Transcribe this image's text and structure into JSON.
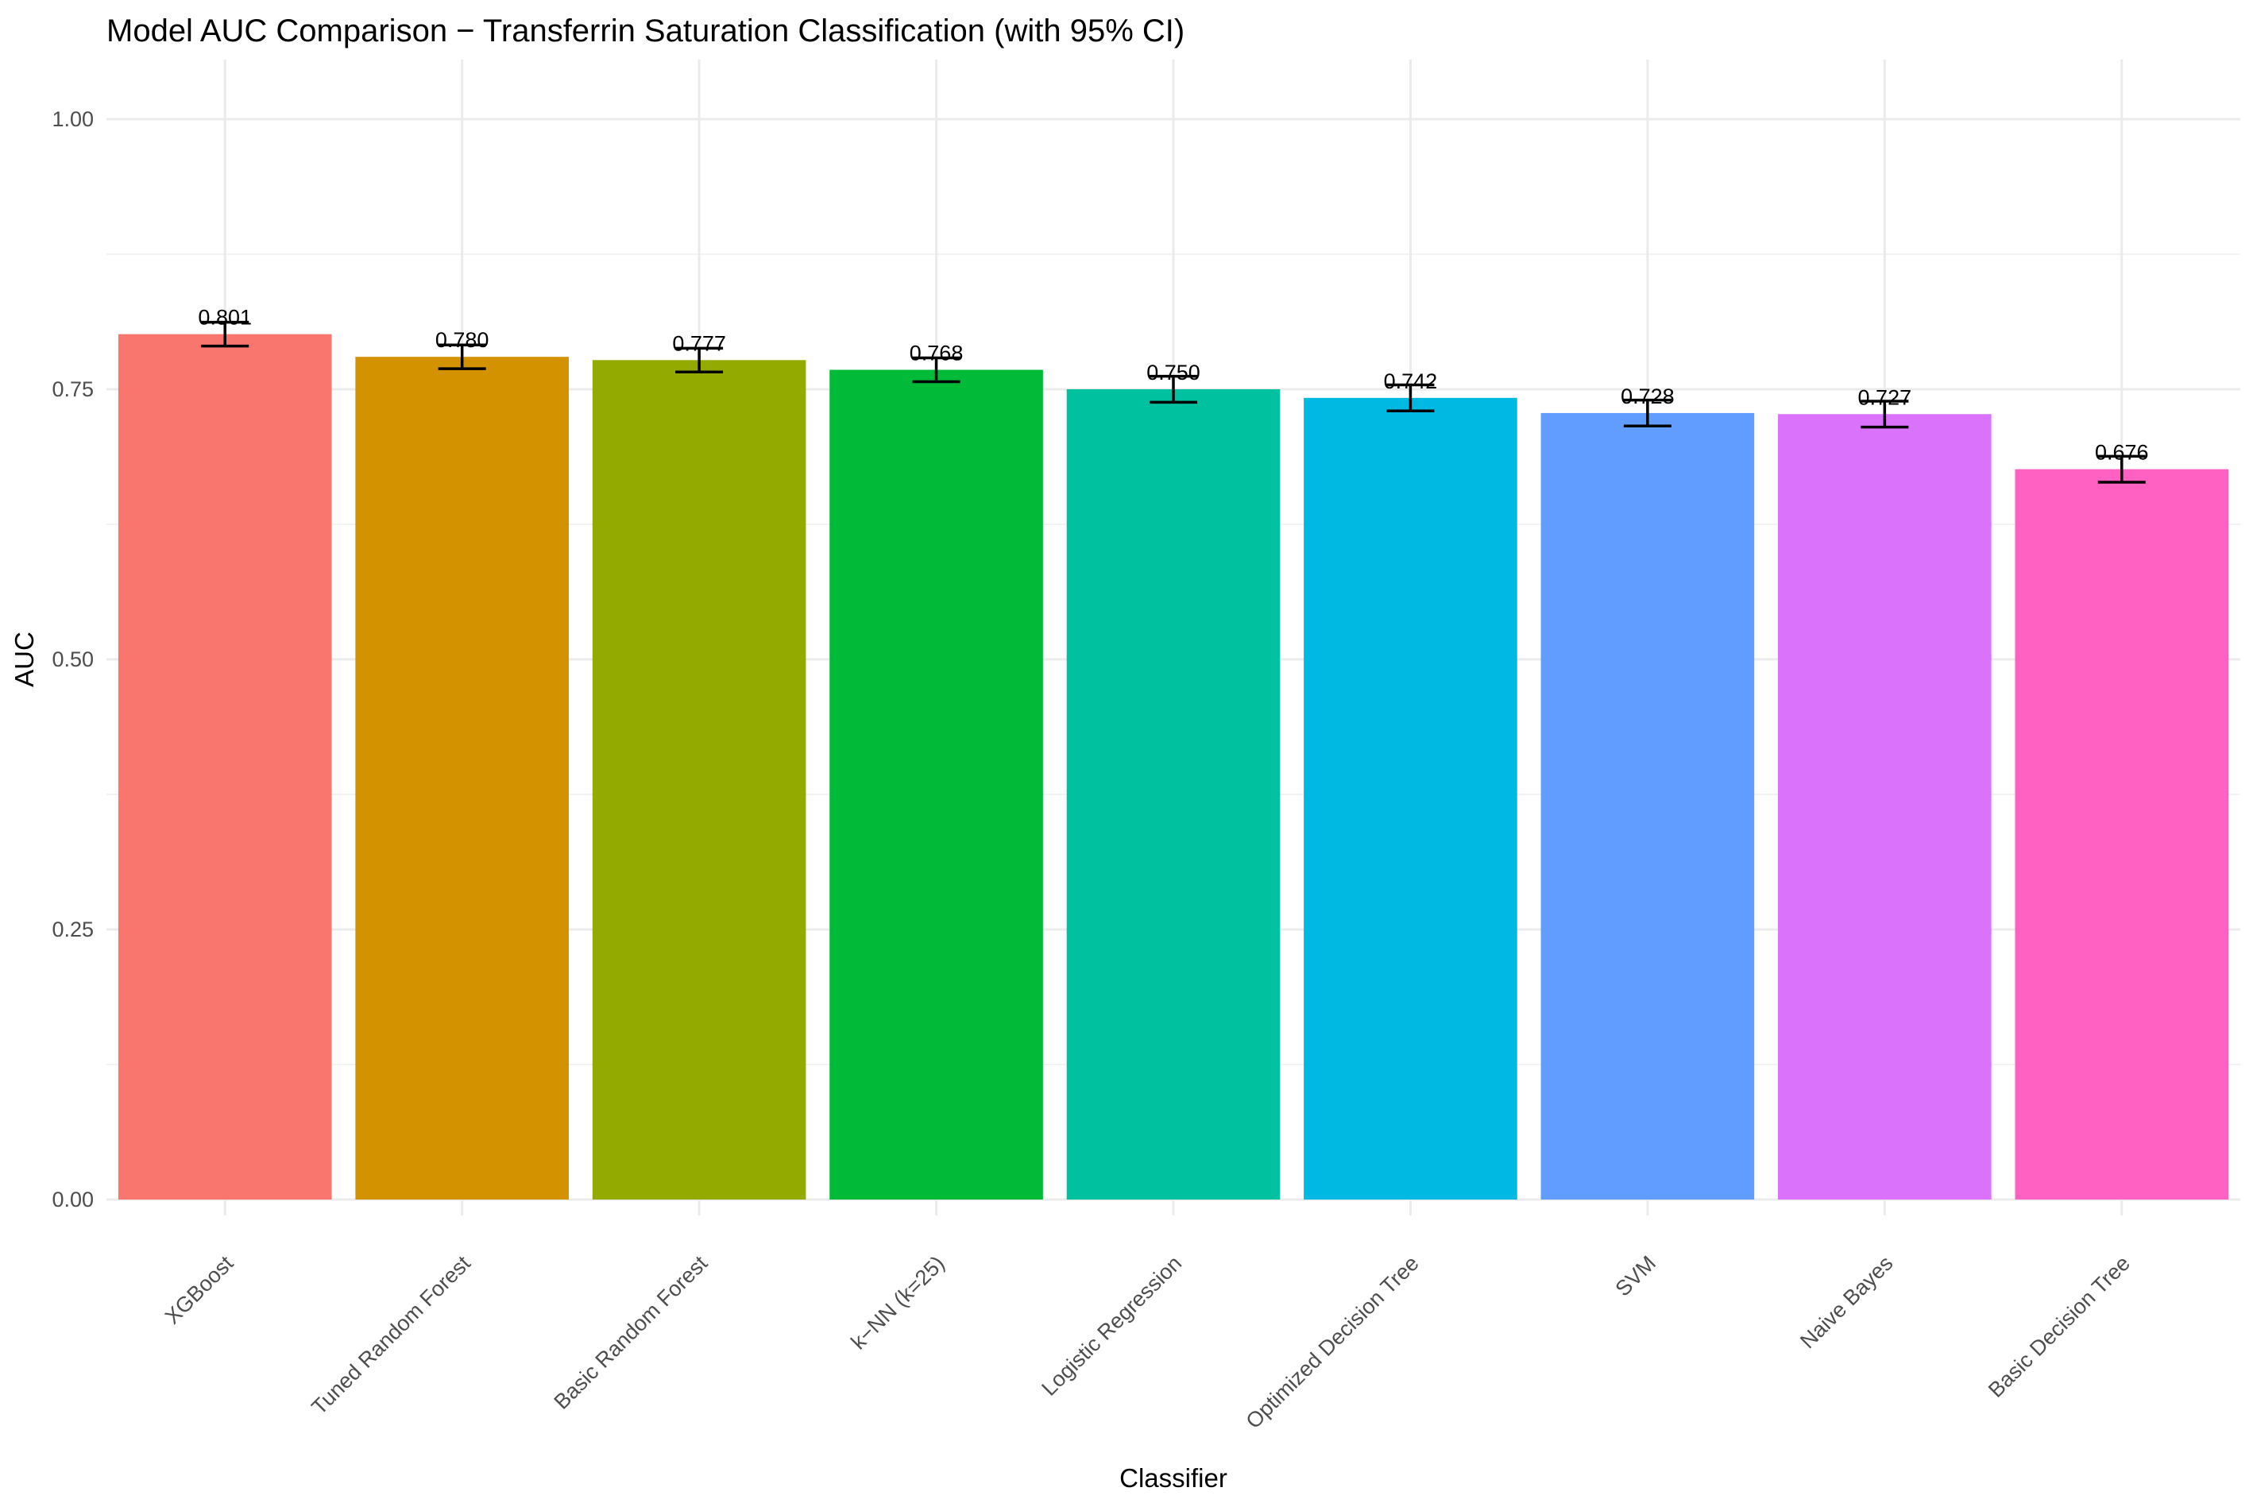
{
  "chart_data": {
    "type": "bar",
    "title": "Model AUC Comparison − Transferrin Saturation Classification (with 95% CI)",
    "xlabel": "Classifier",
    "ylabel": "AUC",
    "ylim": [
      0,
      1.05
    ],
    "yticks": [
      0,
      0.25,
      0.5,
      0.75,
      1.0
    ],
    "ytick_labels": [
      "0.00",
      "0.25",
      "0.50",
      "0.75",
      "1.00"
    ],
    "grid": true,
    "legend": "none",
    "categories": [
      "XGBoost",
      "Tuned Random Forest",
      "Basic Random Forest",
      "k−NN (k=25)",
      "Logistic Regression",
      "Optimized Decision Tree",
      "SVM",
      "Naive Bayes",
      "Basic Decision Tree"
    ],
    "values": [
      0.801,
      0.78,
      0.777,
      0.768,
      0.75,
      0.742,
      0.728,
      0.727,
      0.676
    ],
    "value_labels": [
      "0.801",
      "0.780",
      "0.777",
      "0.768",
      "0.750",
      "0.742",
      "0.728",
      "0.727",
      "0.676"
    ],
    "ci_lower": [
      0.79,
      0.769,
      0.766,
      0.757,
      0.738,
      0.73,
      0.716,
      0.715,
      0.664
    ],
    "ci_upper": [
      0.812,
      0.791,
      0.788,
      0.779,
      0.762,
      0.754,
      0.74,
      0.739,
      0.688
    ],
    "colors": [
      "#F8766D",
      "#D39200",
      "#93AA00",
      "#00BA38",
      "#00C19F",
      "#00B9E3",
      "#619CFF",
      "#DB72FB",
      "#FF61C3"
    ]
  }
}
